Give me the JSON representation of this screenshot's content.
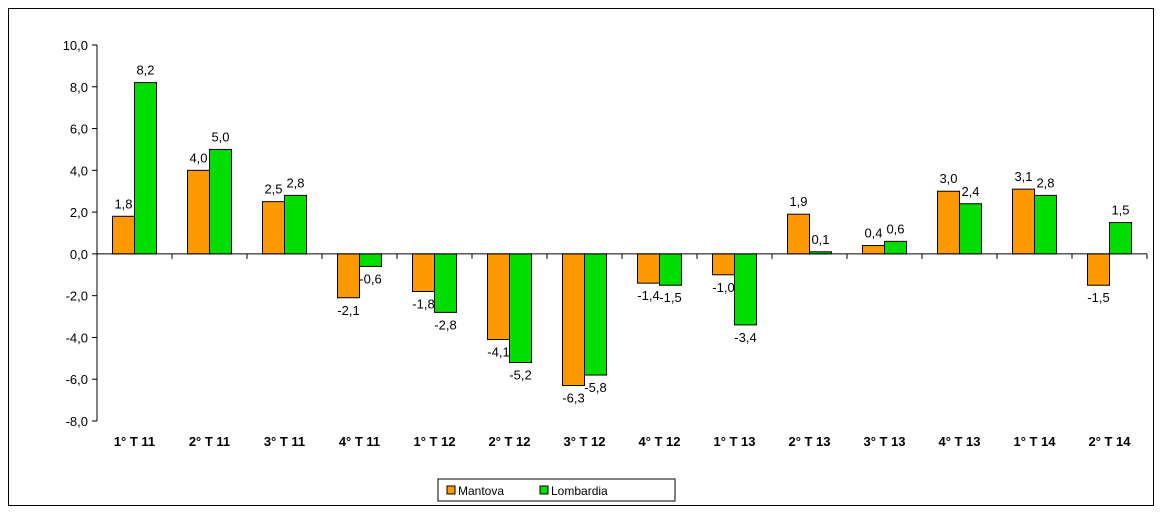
{
  "chart_data": {
    "type": "bar",
    "categories": [
      "1° T 11",
      "2° T 11",
      "3° T 11",
      "4° T 11",
      "1° T 12",
      "2° T 12",
      "3° T 12",
      "4° T 12",
      "1° T 13",
      "2° T 13",
      "3° T 13",
      "4° T 13",
      "1° T 14",
      "2° T 14"
    ],
    "series": [
      {
        "name": "Mantova",
        "color": "#FF9900",
        "values": [
          1.8,
          4.0,
          2.5,
          -2.1,
          -1.8,
          -4.1,
          -6.3,
          -1.4,
          -1.0,
          1.9,
          0.4,
          3.0,
          3.1,
          -1.5
        ],
        "labels": [
          "1,8",
          "4,0",
          "2,5",
          "-2,1",
          "-1,8",
          "-4,1",
          "-6,3",
          "-1,4",
          "-1,0",
          "1,9",
          "0,4",
          "3,0",
          "3,1",
          "-1,5"
        ]
      },
      {
        "name": "Lombardia",
        "color": "#00DD00",
        "values": [
          8.2,
          5.0,
          2.8,
          -0.6,
          -2.8,
          -5.2,
          -5.8,
          -1.5,
          -3.4,
          0.1,
          0.6,
          2.4,
          2.8,
          1.5
        ],
        "labels": [
          "8,2",
          "5,0",
          "2,8",
          "-0,6",
          "-2,8",
          "-5,2",
          "-5,8",
          "-1,5",
          "-3,4",
          "0,1",
          "0,6",
          "2,4",
          "2,8",
          "1,5"
        ]
      }
    ],
    "ylim": [
      -8,
      10
    ],
    "yticks": [
      10,
      8,
      6,
      4,
      2,
      0,
      -2,
      -4,
      -6,
      -8
    ],
    "ytick_labels": [
      "10,0",
      "8,0",
      "6,0",
      "4,0",
      "2,0",
      "0,0",
      "-2,0",
      "-4,0",
      "-6,0",
      "-8,0"
    ],
    "grid": false,
    "legend_position": "bottom-center"
  }
}
